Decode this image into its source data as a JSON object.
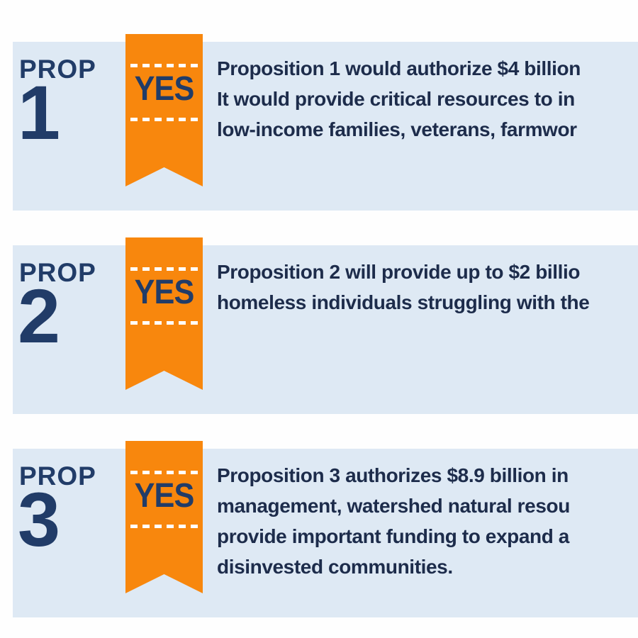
{
  "colors": {
    "card_bg": "#dee9f4",
    "ribbon_orange": "#f8870d",
    "heading_navy": "#213c68",
    "body_text_navy": "#1d2c4b",
    "dash_white": "#ffffff",
    "page_bg": "#fefefe"
  },
  "sections": [
    {
      "prop_label": "PROP",
      "prop_number": "1",
      "ribbon_label": "YES",
      "description_lines": [
        "Proposition 1 would authorize $4 billion",
        "It would provide critical resources to in",
        "low-income families, veterans, farmwor"
      ]
    },
    {
      "prop_label": "PROP",
      "prop_number": "2",
      "ribbon_label": "YES",
      "description_lines": [
        "Proposition 2 will provide up to $2 billio",
        "homeless individuals struggling with the"
      ]
    },
    {
      "prop_label": "PROP",
      "prop_number": "3",
      "ribbon_label": "YES",
      "description_lines": [
        "Proposition 3 authorizes $8.9 billion in ",
        "management, watershed natural resou",
        "provide important funding to expand a",
        "disinvested communities."
      ]
    }
  ]
}
